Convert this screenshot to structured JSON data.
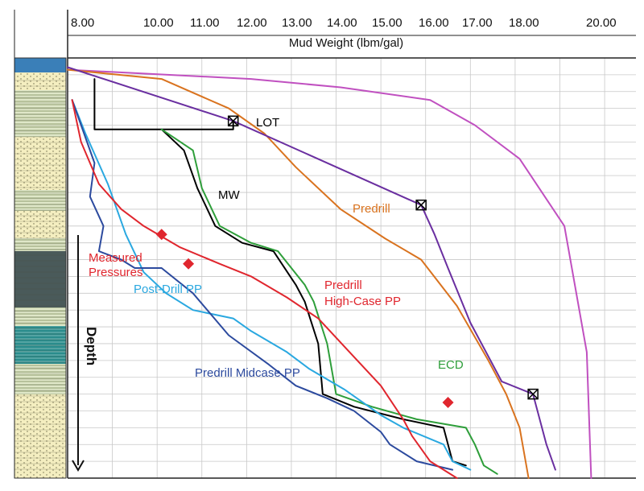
{
  "chart_data": {
    "type": "line",
    "xlabel": "Mud Weight (lbm/gal)",
    "ylabel": "Depth",
    "x_ticks": [
      "8.00",
      "10.00",
      "11.00",
      "12.00",
      "13.00",
      "14.00",
      "15.00",
      "16.00",
      "17.00",
      "18.00",
      "20.00"
    ],
    "xlim": [
      7.9,
      20.6
    ],
    "ylim": [
      0,
      100
    ],
    "y_direction": "down",
    "grid": true,
    "lithology_column": true,
    "annotations": [
      {
        "text": "LOT",
        "color": "#000000"
      },
      {
        "text": "MW",
        "color": "#000000"
      },
      {
        "text": "Predrill",
        "color": "#d9731f"
      },
      {
        "text": "Measured",
        "color": "#e0262e"
      },
      {
        "text": "Pressures",
        "color": "#e0262e"
      },
      {
        "text": "Post-Drill PP",
        "color": "#2aa8e0"
      },
      {
        "text": "Predrill",
        "color": "#e0262e"
      },
      {
        "text": "High-Case PP",
        "color": "#e0262e"
      },
      {
        "text": "ECD",
        "color": "#2e9e3a"
      },
      {
        "text": "Predrill Midcase PP",
        "color": "#2c4a9e"
      }
    ],
    "series": [
      {
        "key": "overburden",
        "color": "#c050c0",
        "points": [
          [
            7.9,
            2.8
          ],
          [
            12,
            5
          ],
          [
            14,
            7
          ],
          [
            16,
            10
          ],
          [
            17,
            16
          ],
          [
            18,
            24
          ],
          [
            19,
            40
          ],
          [
            19.5,
            70
          ],
          [
            19.6,
            100
          ]
        ]
      },
      {
        "key": "predrill_fg",
        "color": "#d9731f",
        "points": [
          [
            7.9,
            2.8
          ],
          [
            10,
            5
          ],
          [
            11.5,
            12
          ],
          [
            12.3,
            18
          ],
          [
            13,
            26
          ],
          [
            14,
            36
          ],
          [
            15,
            43
          ],
          [
            15.8,
            48
          ],
          [
            16.6,
            59
          ],
          [
            17.3,
            72
          ],
          [
            17.7,
            80
          ],
          [
            18,
            88
          ],
          [
            18.2,
            100
          ]
        ]
      },
      {
        "key": "lot_fg_line",
        "color": "#6a2fa0",
        "points": [
          [
            7.9,
            2.2
          ],
          [
            11.6,
            15
          ],
          [
            15.8,
            35
          ],
          [
            16.1,
            42
          ],
          [
            16.4,
            50
          ],
          [
            16.9,
            63
          ],
          [
            17.6,
            77
          ],
          [
            18.3,
            80
          ],
          [
            18.6,
            92
          ],
          [
            18.8,
            98
          ]
        ]
      },
      {
        "key": "lot_staircase",
        "color": "#000000",
        "points": [
          [
            8.5,
            5
          ],
          [
            8.5,
            17
          ],
          [
            11.6,
            17
          ],
          [
            11.6,
            15
          ]
        ]
      },
      {
        "key": "mw",
        "color": "#000000",
        "points": [
          [
            10,
            17
          ],
          [
            10.5,
            22
          ],
          [
            10.8,
            31
          ],
          [
            11.2,
            40
          ],
          [
            11.8,
            44
          ],
          [
            12.5,
            46
          ],
          [
            13,
            54
          ],
          [
            13.2,
            58
          ],
          [
            13.5,
            68
          ],
          [
            13.6,
            80
          ],
          [
            14.3,
            83
          ],
          [
            15.4,
            86
          ],
          [
            16.3,
            88
          ],
          [
            16.5,
            96
          ],
          [
            16.8,
            97
          ]
        ]
      },
      {
        "key": "ecd",
        "color": "#2e9e3a",
        "points": [
          [
            10,
            17
          ],
          [
            10.7,
            22
          ],
          [
            10.9,
            31
          ],
          [
            11.3,
            40
          ],
          [
            12,
            44
          ],
          [
            12.6,
            46
          ],
          [
            13.2,
            54
          ],
          [
            13.4,
            58
          ],
          [
            13.7,
            68
          ],
          [
            13.9,
            80
          ],
          [
            14.7,
            83
          ],
          [
            15.7,
            86
          ],
          [
            16.8,
            88
          ],
          [
            17,
            92
          ],
          [
            17.2,
            97
          ],
          [
            17.5,
            99
          ]
        ]
      },
      {
        "key": "post_drill_pp",
        "color": "#2aa8e0",
        "points": [
          [
            8,
            10
          ],
          [
            8.3,
            18
          ],
          [
            8.8,
            30
          ],
          [
            9.2,
            42
          ],
          [
            9.6,
            51
          ],
          [
            10.1,
            56
          ],
          [
            10.7,
            60
          ],
          [
            11.6,
            62
          ],
          [
            12,
            65
          ],
          [
            12.8,
            70
          ],
          [
            13.3,
            74
          ],
          [
            14.1,
            79
          ],
          [
            14.9,
            85
          ],
          [
            15.4,
            88
          ],
          [
            16.3,
            92
          ],
          [
            16.5,
            96
          ],
          [
            16.9,
            98
          ]
        ]
      },
      {
        "key": "predrill_midcase_pp",
        "color": "#2c4a9e",
        "points": [
          [
            8,
            10
          ],
          [
            8.5,
            25
          ],
          [
            8.4,
            33
          ],
          [
            8.7,
            40
          ],
          [
            8.6,
            46
          ],
          [
            9.1,
            48
          ],
          [
            9.4,
            50
          ],
          [
            10,
            50
          ],
          [
            10.7,
            56
          ],
          [
            11.5,
            66
          ],
          [
            12.4,
            73
          ],
          [
            13,
            78
          ],
          [
            13.7,
            81
          ],
          [
            14.3,
            84
          ],
          [
            14.9,
            89
          ],
          [
            15.1,
            92
          ],
          [
            15.7,
            96
          ],
          [
            16.5,
            98
          ]
        ]
      },
      {
        "key": "predrill_high_case_pp",
        "color": "#e0262e",
        "points": [
          [
            8,
            10
          ],
          [
            8.2,
            20
          ],
          [
            8.6,
            30
          ],
          [
            9.1,
            36
          ],
          [
            9.6,
            40
          ],
          [
            10.4,
            45
          ],
          [
            11.3,
            49
          ],
          [
            12,
            52
          ],
          [
            12.8,
            57
          ],
          [
            13.5,
            62
          ],
          [
            14.2,
            70
          ],
          [
            14.9,
            78
          ],
          [
            15.4,
            86
          ],
          [
            15.6,
            90
          ],
          [
            16,
            96
          ],
          [
            16.6,
            100
          ]
        ]
      }
    ],
    "markers": [
      {
        "name": "lot",
        "shape": "boxed-x",
        "color": "#000000",
        "x": 11.6,
        "y": 15
      },
      {
        "name": "lot",
        "shape": "boxed-x",
        "color": "#000000",
        "x": 15.8,
        "y": 35
      },
      {
        "name": "lot",
        "shape": "boxed-x",
        "color": "#000000",
        "x": 18.3,
        "y": 80
      },
      {
        "name": "measured-pressure",
        "shape": "diamond",
        "color": "#e0262e",
        "x": 10,
        "y": 42
      },
      {
        "name": "measured-pressure",
        "shape": "diamond",
        "color": "#e0262e",
        "x": 10.6,
        "y": 49
      },
      {
        "name": "measured-pressure",
        "shape": "diamond",
        "color": "#e0262e",
        "x": 16.4,
        "y": 82
      }
    ]
  }
}
